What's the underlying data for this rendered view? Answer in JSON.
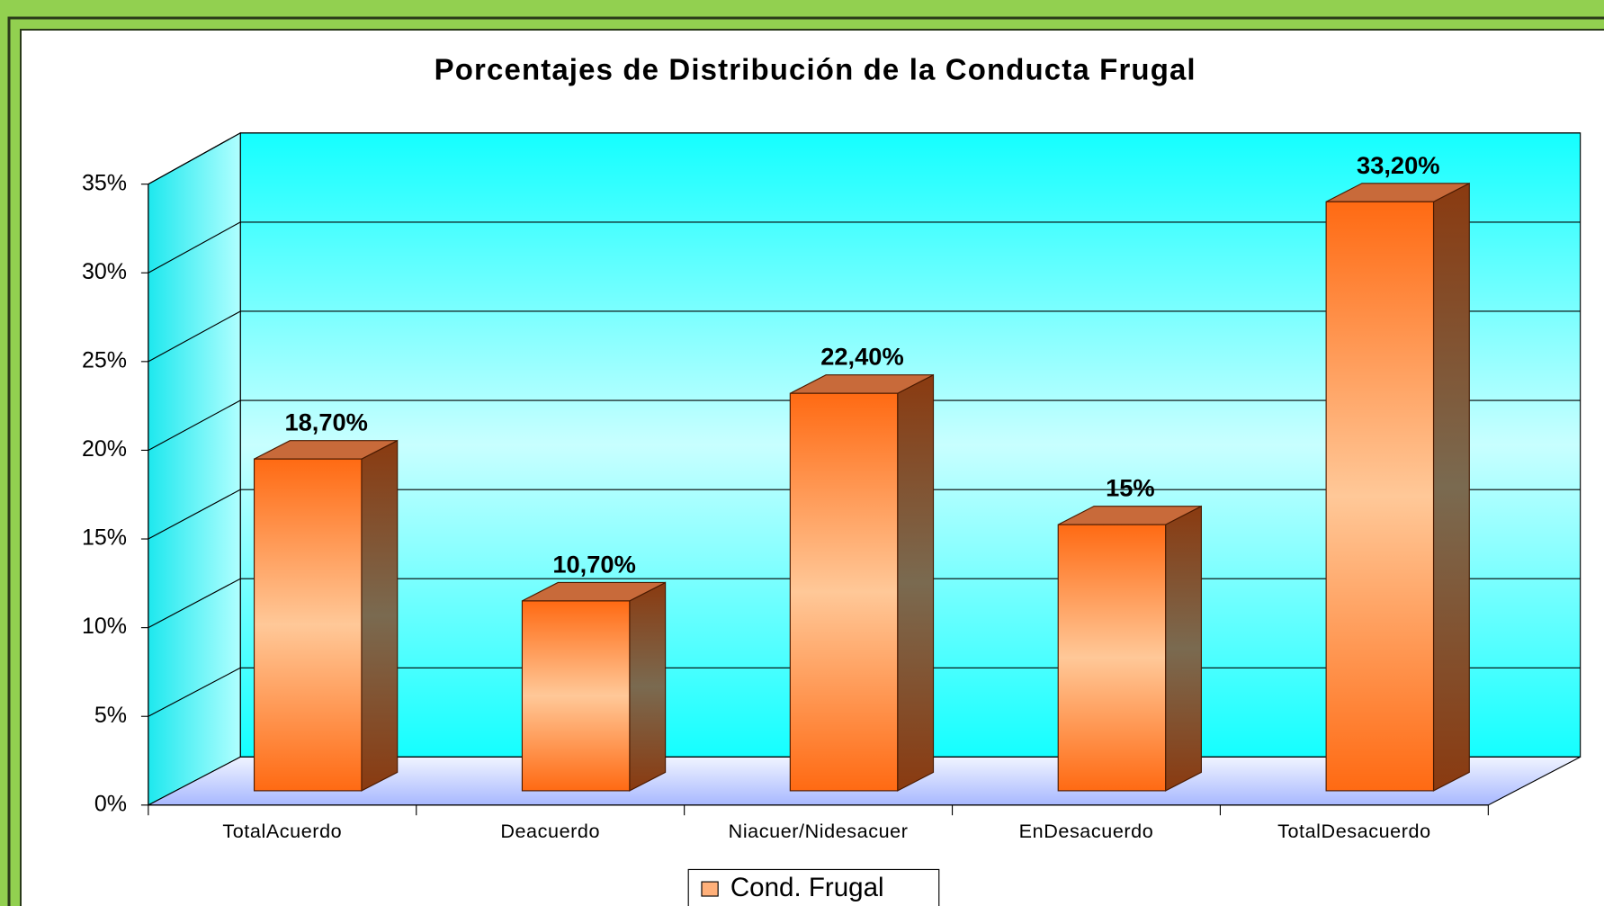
{
  "chart_data": {
    "type": "bar",
    "title": "Porcentajes de Distribución de la Conducta Frugal",
    "categories": [
      "TotalAcuerdo",
      "Deacuerdo",
      "Niacuer/Nidesacuer",
      "EnDesacuerdo",
      "TotalDesacuerdo"
    ],
    "series": [
      {
        "name": "Cond. Frugal",
        "color": "#ff6a13",
        "values": [
          18.7,
          10.7,
          22.4,
          15,
          33.2
        ],
        "value_labels": [
          "18,70%",
          "10,70%",
          "22,40%",
          "15%",
          "33,20%"
        ]
      }
    ],
    "ylim": [
      0,
      35
    ],
    "yticks": [
      {
        "value": 0,
        "label": "0%"
      },
      {
        "value": 5,
        "label": "5%"
      },
      {
        "value": 10,
        "label": "10%"
      },
      {
        "value": 15,
        "label": "15%"
      },
      {
        "value": 20,
        "label": "20%"
      },
      {
        "value": 25,
        "label": "25%"
      },
      {
        "value": 30,
        "label": "30%"
      },
      {
        "value": 35,
        "label": "35%"
      }
    ],
    "grid": true,
    "legend": "bottom"
  }
}
